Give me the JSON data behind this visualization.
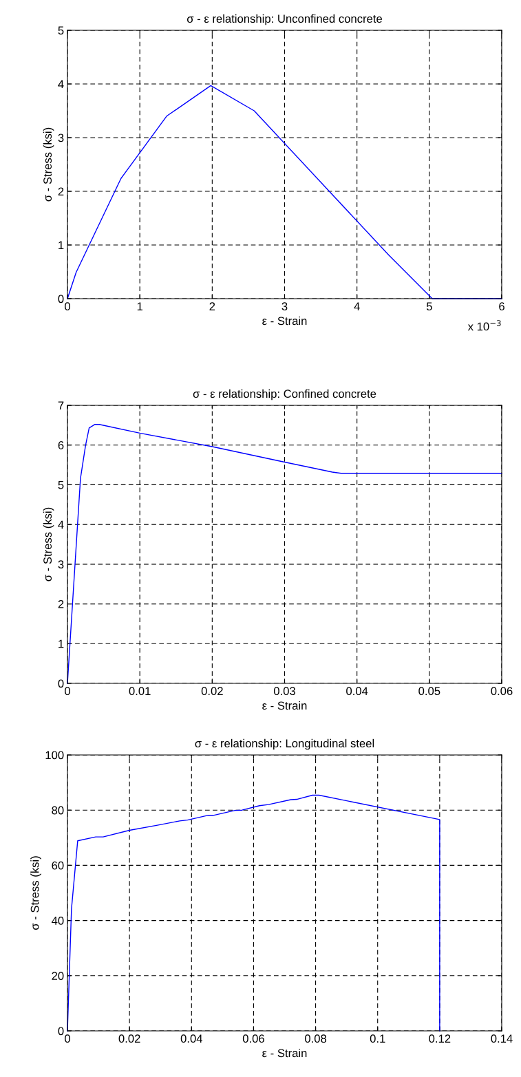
{
  "chart_data": [
    {
      "type": "line",
      "title": "σ - ε relationship: Unconfined concrete",
      "xlabel": "ε - Strain",
      "ylabel": "σ - Stress (ksi)",
      "x": [
        0,
        0.12,
        0.74,
        1.37,
        1.98,
        2.58,
        4.44,
        5.04,
        6
      ],
      "series": [
        {
          "color": "#0000ff",
          "values": [
            0,
            0.49,
            2.24,
            3.4,
            3.97,
            3.5,
            0.81,
            0,
            0
          ]
        }
      ],
      "xlim": [
        0,
        6
      ],
      "xticks": [
        0,
        1,
        2,
        3,
        4,
        5,
        6
      ],
      "ylim": [
        0,
        5
      ],
      "yticks": [
        0,
        1,
        2,
        3,
        4,
        5
      ],
      "grid": true,
      "line_style": "solid",
      "annotations": [
        "x 10$^{−3}$"
      ]
    },
    {
      "type": "line",
      "title": "σ - ε relationship: Confined concrete",
      "xlabel": "ε - Strain",
      "ylabel": "σ - Stress (ksi)",
      "x": [
        0,
        0.0018,
        0.0025,
        0.003,
        0.0038,
        0.0044,
        0.01,
        0.02,
        0.03,
        0.0366,
        0.0378,
        0.06
      ],
      "series": [
        {
          "color": "#0000ff",
          "values": [
            0,
            5.16,
            5.99,
            6.43,
            6.52,
            6.52,
            6.3,
            5.96,
            5.57,
            5.32,
            5.29,
            5.29
          ]
        }
      ],
      "xlim": [
        0,
        0.06
      ],
      "xticks": [
        0,
        0.01,
        0.02,
        0.03,
        0.04,
        0.05,
        0.06
      ],
      "ylim": [
        0,
        7
      ],
      "yticks": [
        0,
        1,
        2,
        3,
        4,
        5,
        6,
        7
      ],
      "grid": true,
      "line_style": "solid"
    },
    {
      "type": "line",
      "title": "σ - ε relationship: Longitudinal steel",
      "xlabel": "ε - Strain",
      "ylabel": "σ - Stress (ksi)",
      "x": [
        0,
        0.0013,
        0.0033,
        0.0091,
        0.0115,
        0.02,
        0.0293,
        0.0362,
        0.0387,
        0.0452,
        0.047,
        0.054,
        0.0563,
        0.0619,
        0.0648,
        0.072,
        0.0739,
        0.079,
        0.0811,
        0.12,
        0.12
      ],
      "series": [
        {
          "color": "#0000ff",
          "values": [
            0,
            44.2,
            68.9,
            70.3,
            70.3,
            72.7,
            74.6,
            76.1,
            76.4,
            78.1,
            78.1,
            79.9,
            80,
            81.6,
            82,
            83.8,
            83.9,
            85.4,
            85.4,
            76.6,
            0
          ]
        }
      ],
      "xlim": [
        0,
        0.14
      ],
      "xticks": [
        0,
        0.02,
        0.04,
        0.06,
        0.08,
        0.1,
        0.12,
        0.14
      ],
      "ylim": [
        0,
        100
      ],
      "yticks": [
        0,
        20,
        40,
        60,
        80,
        100
      ],
      "grid": true,
      "line_style": "solid"
    }
  ]
}
